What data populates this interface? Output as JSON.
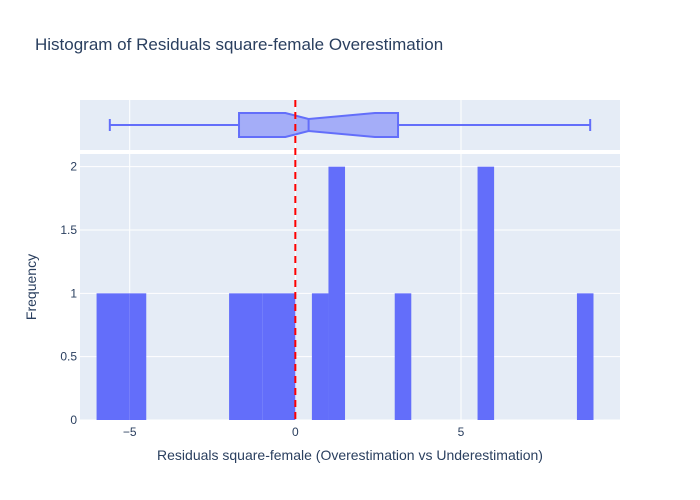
{
  "chart_data": {
    "type": "bar",
    "title": "Histogram of Residuals square-female Overestimation",
    "xlabel": "Residuals square-female (Overestimation vs Underestimation)",
    "ylabel": "Frequency",
    "xlim": [
      -6.5,
      9.8
    ],
    "ylim": [
      0,
      2.1
    ],
    "x_ticks": [
      -5,
      0,
      5
    ],
    "x_tick_labels": [
      "−5",
      "0",
      "5"
    ],
    "y_ticks": [
      0,
      0.5,
      1,
      1.5,
      2
    ],
    "y_tick_labels": [
      "0",
      "0.5",
      "1",
      "1.5",
      "2"
    ],
    "grid": true,
    "bar_color": "#636efa",
    "plot_background": "#e5ecf6",
    "bins": [
      {
        "x0": -6.0,
        "x1": -5.0,
        "count": 1
      },
      {
        "x0": -5.0,
        "x1": -4.5,
        "count": 1
      },
      {
        "x0": -2.0,
        "x1": -1.0,
        "count": 1
      },
      {
        "x0": -1.0,
        "x1": 0.0,
        "count": 1
      },
      {
        "x0": 0.5,
        "x1": 1.0,
        "count": 1
      },
      {
        "x0": 1.0,
        "x1": 1.5,
        "count": 2
      },
      {
        "x0": 3.0,
        "x1": 3.5,
        "count": 1
      },
      {
        "x0": 5.5,
        "x1": 6.0,
        "count": 2
      },
      {
        "x0": 8.5,
        "x1": 9.0,
        "count": 1
      }
    ],
    "reference_line": {
      "x": 0,
      "color": "#ff0000",
      "style": "dashed"
    },
    "box_plot": {
      "min": -5.6,
      "q1": -1.7,
      "median": 0.4,
      "q3": 3.1,
      "max": 8.9,
      "notch_low": -0.3,
      "notch_high": 2.4,
      "color": "#636efa"
    }
  }
}
